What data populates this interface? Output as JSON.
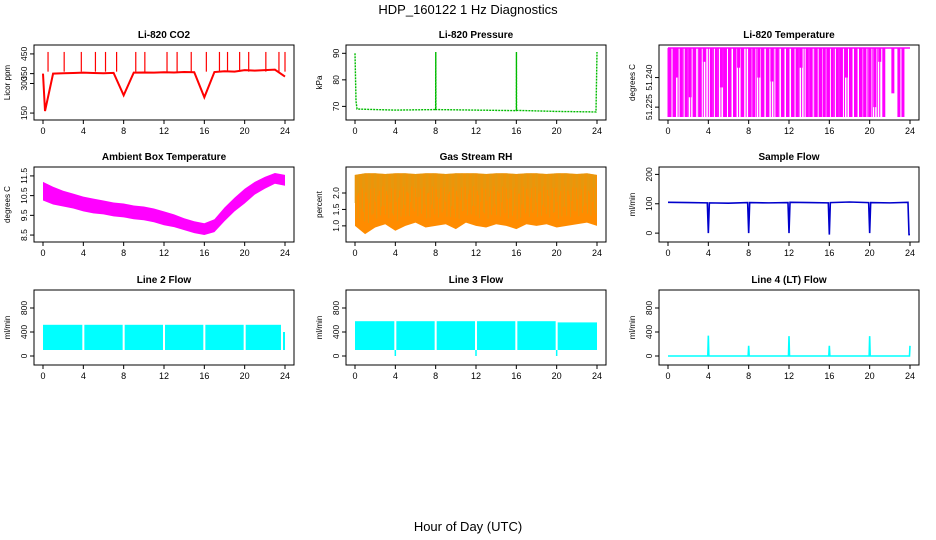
{
  "figure": {
    "title": "HDP_160122  1 Hz Diagnostics",
    "xlabel": "Hour of Day (UTC)"
  },
  "chart_data": [
    {
      "type": "line",
      "title": "Li-820 CO2",
      "ylabel": "Licor ppm",
      "color": "#ff0000",
      "xlim": [
        0,
        24
      ],
      "ylim": [
        130,
        480
      ],
      "xticks": [
        "0",
        "4",
        "8",
        "12",
        "16",
        "20",
        "24"
      ],
      "yticks": [
        {
          "v": 150,
          "label": "150"
        },
        {
          "v": 300,
          "label": "300"
        },
        {
          "v": 350,
          "label": "350"
        },
        {
          "v": 450,
          "label": "450"
        }
      ],
      "x": [
        0,
        0.2,
        1,
        2,
        3,
        4,
        5,
        6,
        7,
        8,
        9,
        10,
        11,
        12,
        13,
        14,
        15,
        16,
        17,
        18,
        19,
        20,
        21,
        22,
        23,
        24
      ],
      "y": [
        350,
        160,
        350,
        352,
        353,
        355,
        353,
        352,
        354,
        240,
        355,
        356,
        355,
        357,
        356,
        358,
        357,
        230,
        358,
        362,
        360,
        368,
        365,
        368,
        370,
        335
      ],
      "spikes": [
        0.5,
        2.1,
        3.8,
        5.2,
        6.2,
        7.3,
        9.2,
        10.1,
        12.3,
        13.3,
        14.7,
        16.2,
        17.5,
        18.3,
        19.5,
        20.4,
        22.1,
        23.4,
        24.0
      ],
      "spike_value": 460
    },
    {
      "type": "line",
      "title": "Li-820 Pressure",
      "ylabel": "kPa",
      "color": "#00bb00",
      "xlim": [
        0,
        24
      ],
      "ylim": [
        66,
        92
      ],
      "xticks": [
        "0",
        "4",
        "8",
        "12",
        "16",
        "20",
        "24"
      ],
      "yticks": [
        {
          "v": 70,
          "label": "70"
        },
        {
          "v": 80,
          "label": "80"
        },
        {
          "v": 90,
          "label": "90"
        }
      ],
      "x": [
        0,
        0.1,
        0.2,
        2,
        4,
        6,
        8,
        8.01,
        8.02,
        10,
        12,
        14,
        16,
        16.01,
        16.02,
        18,
        20,
        22,
        23.9,
        24
      ],
      "y": [
        90,
        72,
        69,
        68.8,
        68.6,
        68.7,
        68.8,
        90.5,
        68.8,
        68.7,
        68.6,
        68.5,
        68.4,
        90.5,
        68.5,
        68.3,
        68.1,
        68,
        67.9,
        90.5
      ]
    },
    {
      "type": "bar",
      "title": "Li-820 Temperature",
      "ylabel": "degrees C",
      "color": "#ff00ff",
      "xlim": [
        0,
        24
      ],
      "ylim": [
        51.22,
        51.255
      ],
      "xticks": [
        "0",
        "4",
        "8",
        "12",
        "16",
        "20",
        "24"
      ],
      "yticks": [
        {
          "v": 51.225,
          "label": "51.225"
        },
        {
          "v": 51.24,
          "label": "51.240"
        }
      ],
      "top_value": 51.255,
      "x": [
        0.2,
        0.6,
        0.9,
        1.3,
        1.8,
        2.2,
        2.6,
        3.2,
        3.6,
        4.3,
        4.8,
        5.3,
        5.7,
        6.1,
        6.6,
        7.0,
        7.4,
        8.1,
        8.5,
        9.0,
        9.4,
        9.9,
        10.3,
        10.8,
        11.4,
        11.9,
        12.4,
        12.8,
        13.2,
        13.8,
        14.2,
        14.7,
        15.1,
        15.5,
        15.9,
        16.3,
        16.8,
        17.2,
        17.7,
        18.1,
        18.6,
        19.1,
        19.5,
        20.0,
        20.5,
        21.0,
        21.4,
        22.3,
        22.9,
        23.3
      ],
      "bottom": [
        51.22,
        51.22,
        51.24,
        51.22,
        51.22,
        51.23,
        51.22,
        51.22,
        51.248,
        51.22,
        51.22,
        51.235,
        51.22,
        51.22,
        51.22,
        51.245,
        51.22,
        51.22,
        51.22,
        51.24,
        51.22,
        51.22,
        51.238,
        51.22,
        51.22,
        51.22,
        51.22,
        51.22,
        51.245,
        51.22,
        51.22,
        51.22,
        51.22,
        51.22,
        51.22,
        51.22,
        51.22,
        51.22,
        51.24,
        51.22,
        51.22,
        51.22,
        51.22,
        51.22,
        51.225,
        51.248,
        51.22,
        51.232,
        51.22,
        51.22
      ]
    },
    {
      "type": "area",
      "title": "Ambient Box Temperature",
      "ylabel": "degrees C",
      "color": "#ff00ff",
      "xlim": [
        0,
        24
      ],
      "ylim": [
        8.3,
        11.8
      ],
      "xticks": [
        "0",
        "4",
        "8",
        "12",
        "16",
        "20",
        "24"
      ],
      "yticks": [
        {
          "v": 8.5,
          "label": "8.5"
        },
        {
          "v": 9.5,
          "label": "9.5"
        },
        {
          "v": 10.5,
          "label": "10.5"
        },
        {
          "v": 11.5,
          "label": "11.5"
        }
      ],
      "x": [
        0,
        1,
        2,
        3,
        4,
        5,
        6,
        7,
        8,
        9,
        10,
        11,
        12,
        13,
        14,
        15,
        16,
        17,
        18,
        19,
        20,
        21,
        22,
        23,
        24
      ],
      "high": [
        11.2,
        10.95,
        10.75,
        10.6,
        10.45,
        10.35,
        10.25,
        10.15,
        10.1,
        10.0,
        9.95,
        9.85,
        9.7,
        9.55,
        9.35,
        9.2,
        9.1,
        9.3,
        9.9,
        10.4,
        10.85,
        11.2,
        11.45,
        11.65,
        11.55
      ],
      "low": [
        10.25,
        10.05,
        9.95,
        9.85,
        9.7,
        9.6,
        9.55,
        9.45,
        9.4,
        9.3,
        9.25,
        9.15,
        9.0,
        8.9,
        8.75,
        8.6,
        8.5,
        8.65,
        9.2,
        9.7,
        10.1,
        10.55,
        10.85,
        11.1,
        11.0
      ]
    },
    {
      "type": "area",
      "title": "Gas Stream RH",
      "ylabel": "percent",
      "color": "#ff8c00",
      "color2": "#d4a017",
      "xlim": [
        0,
        24
      ],
      "ylim": [
        0.6,
        2.7
      ],
      "xticks": [
        "0",
        "4",
        "8",
        "12",
        "16",
        "20",
        "24"
      ],
      "yticks": [
        {
          "v": 1.0,
          "label": "1.0"
        },
        {
          "v": 1.5,
          "label": "1.5"
        },
        {
          "v": 2.0,
          "label": "2.0"
        }
      ],
      "x": [
        0,
        1,
        2,
        3,
        4,
        5,
        6,
        7,
        8,
        9,
        10,
        11,
        12,
        13,
        14,
        15,
        16,
        17,
        18,
        19,
        20,
        21,
        22,
        23,
        24
      ],
      "high": [
        2.55,
        2.6,
        2.6,
        2.58,
        2.6,
        2.6,
        2.58,
        2.6,
        2.6,
        2.58,
        2.6,
        2.6,
        2.6,
        2.58,
        2.6,
        2.6,
        2.58,
        2.6,
        2.6,
        2.58,
        2.6,
        2.6,
        2.58,
        2.6,
        2.55
      ],
      "low": [
        1.0,
        0.75,
        0.95,
        1.05,
        0.85,
        1.0,
        1.1,
        0.95,
        1.0,
        1.05,
        0.9,
        1.1,
        1.0,
        0.95,
        1.05,
        1.0,
        0.9,
        1.05,
        1.0,
        1.05,
        0.95,
        1.0,
        1.05,
        1.1,
        1.0
      ]
    },
    {
      "type": "line",
      "title": "Sample Flow",
      "ylabel": "ml/min",
      "color": "#0000cc",
      "xlim": [
        0,
        24
      ],
      "ylim": [
        -20,
        215
      ],
      "xticks": [
        "0",
        "4",
        "8",
        "12",
        "16",
        "20",
        "24"
      ],
      "yticks": [
        {
          "v": 0,
          "label": "0"
        },
        {
          "v": 100,
          "label": "100"
        },
        {
          "v": 200,
          "label": "200"
        }
      ],
      "x": [
        0,
        2,
        3.9,
        4.0,
        4.1,
        6,
        7.9,
        8.0,
        8.1,
        10,
        11.9,
        12.0,
        12.1,
        14,
        15.9,
        16.0,
        16.1,
        18,
        19.9,
        20.0,
        20.1,
        22,
        23.8,
        23.9,
        24
      ],
      "y": [
        105,
        104,
        103,
        0,
        103,
        102,
        104,
        0,
        104,
        103,
        104,
        0,
        105,
        104,
        103,
        -5,
        104,
        106,
        104,
        0,
        104,
        103,
        105,
        -5,
        -5
      ]
    },
    {
      "type": "bar",
      "title": "Line 2 Flow",
      "ylabel": "ml/min",
      "color": "#00ffff",
      "xlim": [
        0,
        24
      ],
      "ylim": [
        -100,
        1050
      ],
      "xticks": [
        "0",
        "4",
        "8",
        "12",
        "16",
        "20",
        "24"
      ],
      "yticks": [
        {
          "v": 0,
          "label": "0"
        },
        {
          "v": 400,
          "label": "400"
        },
        {
          "v": 800,
          "label": "800"
        }
      ],
      "segments": [
        [
          0,
          3.9
        ],
        [
          4.1,
          7.9
        ],
        [
          8.1,
          11.9
        ],
        [
          12.1,
          15.9
        ],
        [
          16.1,
          19.9
        ],
        [
          20.1,
          23.6
        ]
      ],
      "segment_low": 100,
      "segment_high": 520,
      "tail": {
        "x": 23.9,
        "low": 100,
        "high": 400
      }
    },
    {
      "type": "bar",
      "title": "Line 3 Flow",
      "ylabel": "ml/min",
      "color": "#00ffff",
      "xlim": [
        0,
        24
      ],
      "ylim": [
        -100,
        1050
      ],
      "xticks": [
        "0",
        "4",
        "8",
        "12",
        "16",
        "20",
        "24"
      ],
      "yticks": [
        {
          "v": 0,
          "label": "0"
        },
        {
          "v": 400,
          "label": "400"
        },
        {
          "v": 800,
          "label": "800"
        }
      ],
      "segments": [
        [
          0,
          3.9
        ],
        [
          4.1,
          7.9
        ],
        [
          8.1,
          11.9
        ],
        [
          12.1,
          15.9
        ],
        [
          16.1,
          19.9
        ],
        [
          20.1,
          24
        ]
      ],
      "segment_low": 100,
      "segment_high": 580,
      "high_after": {
        "x": 19.3,
        "high": 560
      },
      "dips": [
        4.0,
        12.0,
        20.0
      ],
      "dip_value": 0
    },
    {
      "type": "line",
      "title": "Line 4 (LT) Flow",
      "ylabel": "ml/min",
      "color": "#00ffff",
      "xlim": [
        0,
        24
      ],
      "ylim": [
        -100,
        1050
      ],
      "xticks": [
        "0",
        "4",
        "8",
        "12",
        "16",
        "20",
        "24"
      ],
      "yticks": [
        {
          "v": 0,
          "label": "0"
        },
        {
          "v": 400,
          "label": "400"
        },
        {
          "v": 800,
          "label": "800"
        }
      ],
      "x": [
        0,
        3.95,
        4.0,
        4.05,
        7.95,
        8.0,
        8.05,
        11.95,
        12.0,
        12.05,
        15.95,
        16.0,
        16.05,
        19.95,
        20.0,
        20.05,
        23.95,
        24.0
      ],
      "y": [
        0,
        0,
        340,
        0,
        0,
        170,
        0,
        0,
        330,
        0,
        0,
        170,
        0,
        0,
        330,
        0,
        0,
        170
      ]
    }
  ]
}
